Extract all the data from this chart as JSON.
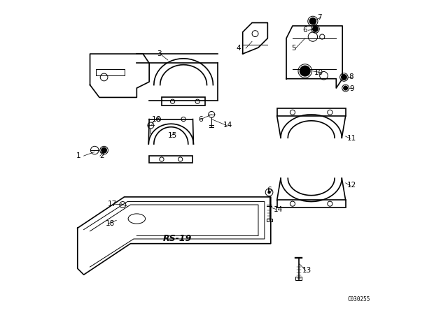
{
  "bg_color": "#ffffff",
  "line_color": "#000000",
  "fig_width": 6.4,
  "fig_height": 4.48,
  "dpi": 100,
  "watermark": "C030255",
  "rs_label": "RS-19",
  "label_font_size": 7.5
}
